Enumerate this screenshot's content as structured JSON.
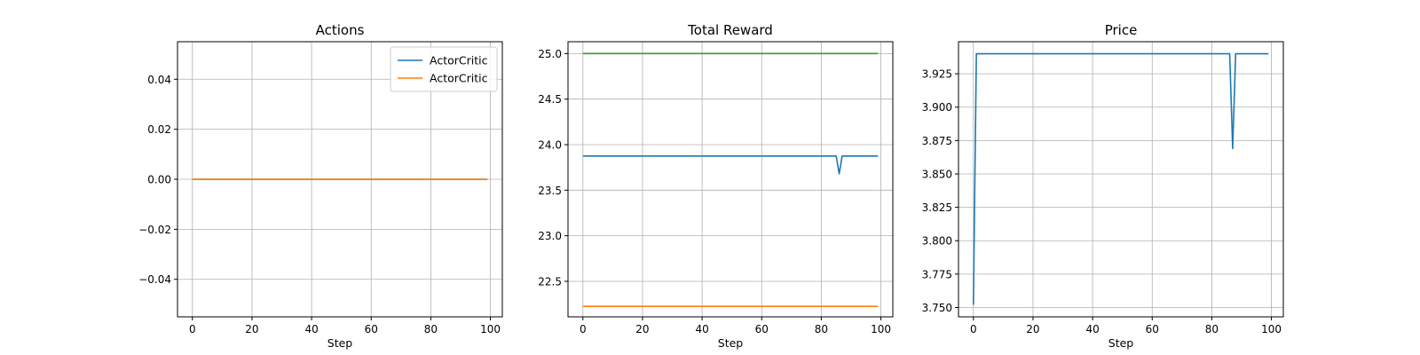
{
  "chart_data": [
    {
      "type": "line",
      "title": "Actions",
      "xlabel": "Step",
      "ylabel": "",
      "xlim": [
        -5,
        104
      ],
      "ylim": [
        -0.055,
        0.055
      ],
      "xticks": [
        0,
        20,
        40,
        60,
        80,
        100
      ],
      "yticks": [
        -0.04,
        -0.02,
        0.0,
        0.02,
        0.04
      ],
      "ytick_labels": [
        "−0.04",
        "−0.02",
        "0.00",
        "0.02",
        "0.04"
      ],
      "grid": true,
      "legend": "top-right",
      "series": [
        {
          "name": "ActorCritic",
          "color": "#1f77b4",
          "x": [
            0,
            99
          ],
          "y": [
            0.0,
            0.0
          ]
        },
        {
          "name": "ActorCritic",
          "color": "#ff7f0e",
          "x": [
            0,
            99
          ],
          "y": [
            0.0,
            0.0
          ]
        }
      ]
    },
    {
      "type": "line",
      "title": "Total Reward",
      "xlabel": "Step",
      "ylabel": "",
      "xlim": [
        -5,
        104
      ],
      "ylim": [
        22.11,
        25.13
      ],
      "xticks": [
        0,
        20,
        40,
        60,
        80,
        100
      ],
      "yticks": [
        22.5,
        23.0,
        23.5,
        24.0,
        24.5,
        25.0
      ],
      "ytick_labels": [
        "22.5",
        "23.0",
        "23.5",
        "24.0",
        "24.5",
        "25.0"
      ],
      "grid": true,
      "series": [
        {
          "color": "#2ca02c",
          "x": [
            0,
            99
          ],
          "y": [
            25.0,
            25.0
          ]
        },
        {
          "color": "#1f77b4",
          "x": [
            0,
            85,
            86,
            87,
            99
          ],
          "y": [
            23.875,
            23.875,
            23.68,
            23.875,
            23.875
          ]
        },
        {
          "color": "#ff7f0e",
          "x": [
            0,
            99
          ],
          "y": [
            22.225,
            22.225
          ]
        }
      ]
    },
    {
      "type": "line",
      "title": "Price",
      "xlabel": "Step",
      "ylabel": "",
      "xlim": [
        -5,
        104
      ],
      "ylim": [
        3.743,
        3.949
      ],
      "xticks": [
        0,
        20,
        40,
        60,
        80,
        100
      ],
      "yticks": [
        3.75,
        3.775,
        3.8,
        3.825,
        3.85,
        3.875,
        3.9,
        3.925
      ],
      "ytick_labels": [
        "3.750",
        "3.775",
        "3.800",
        "3.825",
        "3.850",
        "3.875",
        "3.900",
        "3.925"
      ],
      "grid": true,
      "series": [
        {
          "color": "#1f77b4",
          "x": [
            0,
            1,
            86,
            87,
            88,
            99
          ],
          "y": [
            3.752,
            3.94,
            3.94,
            3.869,
            3.94,
            3.94
          ]
        }
      ]
    }
  ]
}
